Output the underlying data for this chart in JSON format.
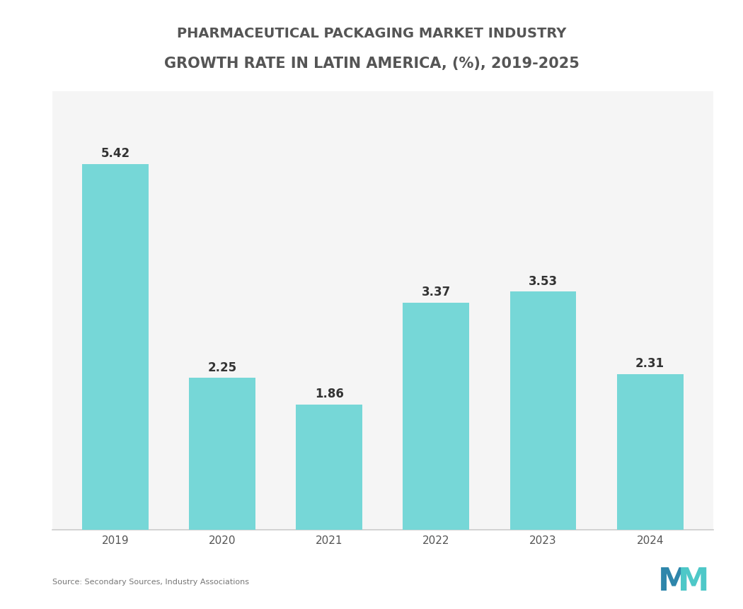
{
  "title_line1": "PHARMACEUTICAL PACKAGING MARKET INDUSTRY",
  "title_line2": "GROWTH RATE IN LATIN AMERICA, (%), 2019-2025",
  "categories": [
    "2019",
    "2020",
    "2021",
    "2022",
    "2023",
    "2024"
  ],
  "values": [
    5.42,
    2.25,
    1.86,
    3.37,
    3.53,
    2.31
  ],
  "bar_color": "#76D7D7",
  "background_color": "#ffffff",
  "plot_bg_color": "#f5f5f5",
  "title_color": "#555555",
  "value_label_color": "#333333",
  "xlabel_color": "#555555",
  "spine_color": "#cccccc",
  "source_text": "Source: Secondary Sources, Industry Associations",
  "source_color": "#777777",
  "ylim_max": 6.5,
  "bar_width": 0.62,
  "value_fontsize": 12,
  "category_fontsize": 11,
  "title_fontsize": 14,
  "logo_color1": "#2E86AB",
  "logo_color2": "#4EC8C8"
}
